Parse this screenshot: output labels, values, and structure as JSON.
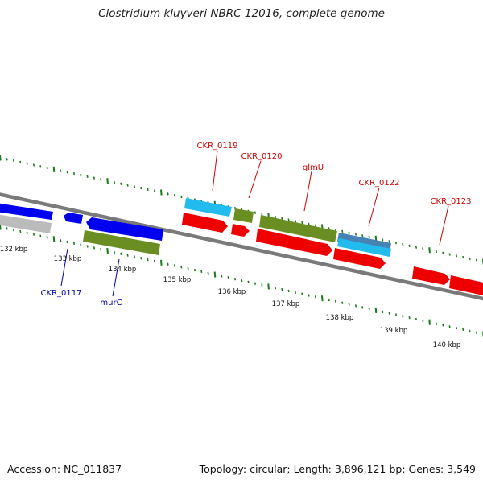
{
  "title": "Clostridium kluyveri NBRC 12016, complete genome",
  "footer": {
    "accession": "Accession: NC_011837",
    "topology": "Topology: circular; Length: 3,896,121 bp; Genes: 3,549"
  },
  "colors": {
    "backbone": "#7a7a7a",
    "ticks": "#1a7a1a",
    "label_top": "#cc0000",
    "label_bottom": "#0000aa",
    "gene_red": "#ee0000",
    "gene_blue": "#0000ee",
    "gene_cyan": "#22bbee",
    "gene_olive": "#6b8e23",
    "gene_steel": "#4682b4",
    "gene_gray": "#bbbbbb"
  },
  "scale_labels": [
    "132 kbp",
    "133 kbp",
    "134 kbp",
    "135 kbp",
    "136 kbp",
    "137 kbp",
    "138 kbp",
    "139 kbp",
    "140 kbp"
  ],
  "gene_labels": {
    "top": [
      "CKR_0119",
      "CKR_0120",
      "glmU",
      "CKR_0122",
      "CKR_0123"
    ],
    "bottom": [
      "CKR_0117",
      "murC"
    ]
  },
  "legend_icons": [
    "gene-arrow-icon"
  ]
}
